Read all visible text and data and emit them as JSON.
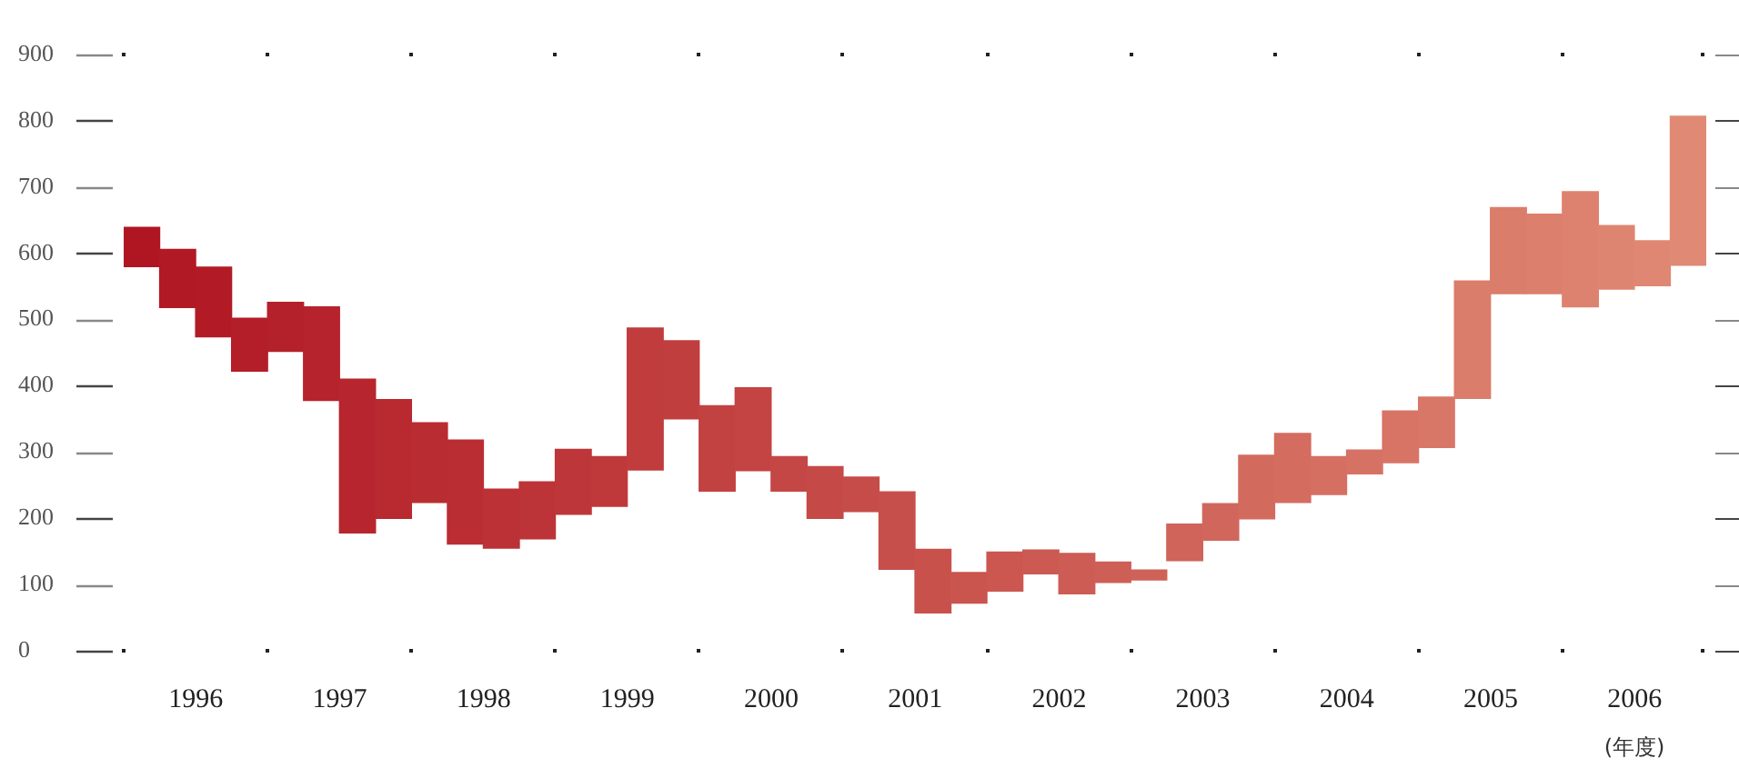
{
  "chart_data": {
    "type": "bar",
    "xlabel": "(年度)",
    "categories": [
      null,
      "1996",
      null,
      null,
      null,
      "1997",
      null,
      null,
      null,
      "1998",
      null,
      null,
      null,
      "1999",
      null,
      null,
      null,
      "2000",
      null,
      null,
      null,
      "2001",
      null,
      null,
      null,
      "2002",
      null,
      null,
      null,
      "2003",
      null,
      null,
      null,
      "2004",
      null,
      null,
      null,
      "2005",
      null,
      null,
      null,
      "2006",
      null,
      null
    ],
    "base": [
      580,
      518,
      474,
      422,
      452,
      378,
      178,
      200,
      224,
      161,
      155,
      169,
      206,
      218,
      273,
      350,
      241,
      272,
      241,
      200,
      210,
      123,
      57,
      72,
      90,
      116,
      86,
      103,
      107,
      136,
      167,
      199,
      224,
      236,
      267,
      284,
      307,
      381,
      539,
      539,
      519,
      546,
      551,
      582
    ],
    "values": [
      59,
      88,
      105,
      80,
      74,
      141,
      232,
      179,
      120,
      157,
      89,
      86,
      98,
      75,
      214,
      118,
      129,
      125,
      52,
      78,
      52,
      117,
      96,
      46,
      59,
      36,
      61,
      31,
      15,
      55,
      55,
      96,
      104,
      57,
      36,
      78,
      76,
      177,
      130,
      120,
      174,
      96,
      68,
      225
    ],
    "colors": [
      "#b01622",
      "#b11924",
      "#b21b26",
      "#b31e28",
      "#b4212a",
      "#b6232c",
      "#b7262e",
      "#b82930",
      "#b92c31",
      "#ba2e33",
      "#bb3135",
      "#bc3437",
      "#bd3639",
      "#bf393b",
      "#c03c3d",
      "#c13e3f",
      "#c24141",
      "#c34443",
      "#c44745",
      "#c54947",
      "#c64c49",
      "#c74f4b",
      "#c9514c",
      "#ca544e",
      "#cb5750",
      "#cc5952",
      "#cd5c54",
      "#ce5f56",
      "#cf6258",
      "#d0645a",
      "#d1675c",
      "#d36a5e",
      "#d46c60",
      "#d56f62",
      "#d67264",
      "#d77466",
      "#d87767",
      "#da7d6b",
      "#da7d6b",
      "#dc7f6d",
      "#dd826f",
      "#de8571",
      "#df8773",
      "#e08a75"
    ],
    "ylim": [
      0,
      900
    ],
    "yticks": [
      0,
      100,
      200,
      300,
      400,
      500,
      600,
      700,
      800,
      900
    ]
  }
}
